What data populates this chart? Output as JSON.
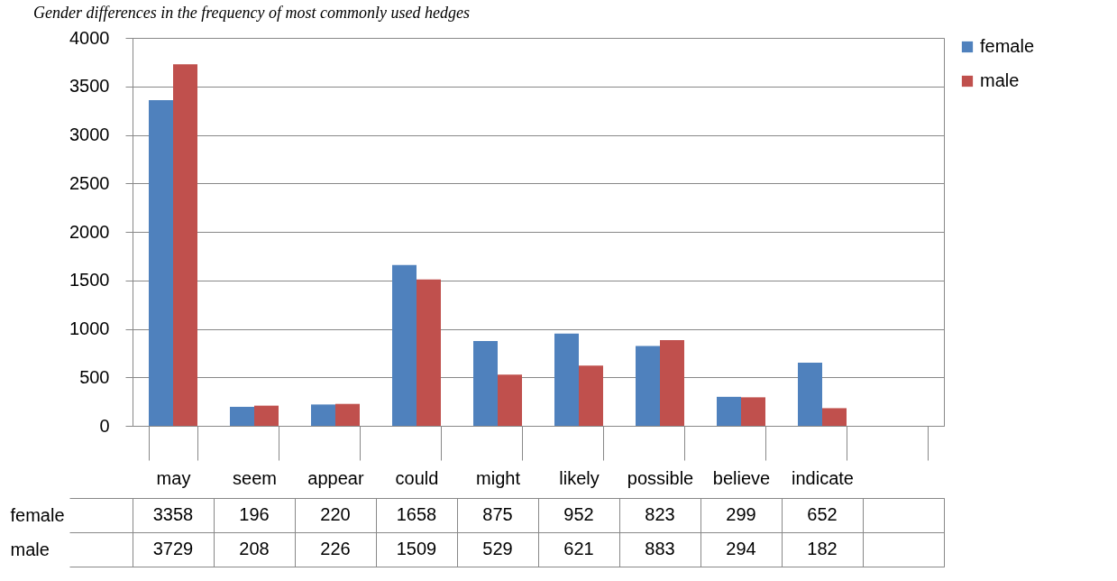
{
  "chart_data": {
    "type": "bar",
    "title": "Gender differences in the frequency of most commonly used hedges",
    "categories": [
      "may",
      "seem",
      "appear",
      "could",
      "might",
      "likely",
      "possible",
      "believe",
      "indicate",
      null
    ],
    "series": [
      {
        "name": "female",
        "color": "#4f81bd",
        "values": [
          3358,
          196,
          220,
          1658,
          875,
          952,
          823,
          299,
          652,
          null
        ]
      },
      {
        "name": "male",
        "color": "#c0504d",
        "values": [
          3729,
          208,
          226,
          1509,
          529,
          621,
          883,
          294,
          182,
          null
        ]
      }
    ],
    "ylim": [
      0,
      4000
    ],
    "yticks": [
      0,
      500,
      1000,
      1500,
      2000,
      2500,
      3000,
      3500,
      4000
    ],
    "grid": "y",
    "legend": "right",
    "data_labels": true
  }
}
